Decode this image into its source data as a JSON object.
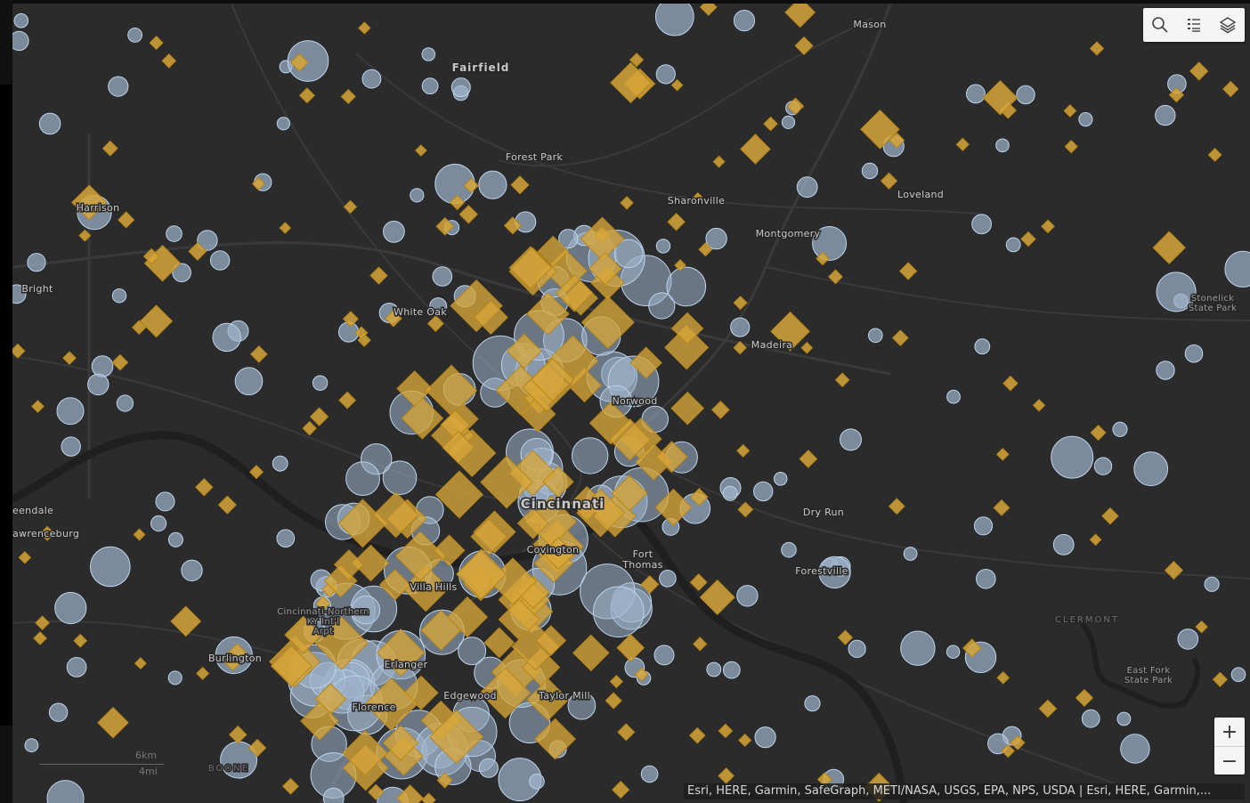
{
  "toolbar": {
    "search_icon": "search-icon",
    "legend_icon": "legend-list-icon",
    "layers_icon": "layers-icon"
  },
  "zoom": {
    "zoom_in_label": "+",
    "zoom_out_label": "−"
  },
  "attribution": "Esri, HERE, Garmin, SafeGraph, METI/NASA, USGS, EPA, NPS, USDA | Esri, HERE, Garmin,...",
  "scale": {
    "km_label": "6km",
    "mi_label": "4mi"
  },
  "colors": {
    "background": "#2b2b2b",
    "circle_fill": "#9fb5cc",
    "circle_stroke": "#bcd4ec",
    "diamond_fill": "#d7a63a",
    "diamond_stroke": "#b78618",
    "road": "#3a3a3a",
    "river": "#1f1f1f",
    "label": "#c8c8c8"
  },
  "places": [
    {
      "id": "mason",
      "name": "Mason",
      "type": "town"
    },
    {
      "id": "fairfield",
      "name": "Fairfield",
      "type": "city"
    },
    {
      "id": "forest-park",
      "name": "Forest Park",
      "type": "town"
    },
    {
      "id": "sharonville",
      "name": "Sharonville",
      "type": "town"
    },
    {
      "id": "loveland",
      "name": "Loveland",
      "type": "town"
    },
    {
      "id": "harrison",
      "name": "Harrison",
      "type": "town"
    },
    {
      "id": "montgomery",
      "name": "Montgomery",
      "type": "town"
    },
    {
      "id": "bright",
      "name": "Bright",
      "type": "town"
    },
    {
      "id": "white-oak",
      "name": "White Oak",
      "type": "town"
    },
    {
      "id": "stonelick",
      "name": "Stonelick State Park",
      "type": "park"
    },
    {
      "id": "madeira",
      "name": "Madeira",
      "type": "town"
    },
    {
      "id": "norwood",
      "name": "Norwood",
      "type": "town"
    },
    {
      "id": "greendale",
      "name": "eendale",
      "type": "town"
    },
    {
      "id": "lawrenceburg",
      "name": "awrenceburg",
      "type": "town"
    },
    {
      "id": "cincinnati",
      "name": "Cincinnati",
      "type": "city"
    },
    {
      "id": "dry-run",
      "name": "Dry Run",
      "type": "town"
    },
    {
      "id": "covington",
      "name": "Covington",
      "type": "town"
    },
    {
      "id": "fort-thomas",
      "name": "Fort Thomas",
      "type": "town"
    },
    {
      "id": "forestville",
      "name": "Forestville",
      "type": "town"
    },
    {
      "id": "villa-hills",
      "name": "Villa Hills",
      "type": "town"
    },
    {
      "id": "airport",
      "name": "Cincinnati-Northern KY Int'l Arpt",
      "type": "airport"
    },
    {
      "id": "clermont",
      "name": "CLERMONT",
      "type": "county"
    },
    {
      "id": "burlington",
      "name": "Burlington",
      "type": "town"
    },
    {
      "id": "erlanger",
      "name": "Erlanger",
      "type": "town"
    },
    {
      "id": "east-fork",
      "name": "East Fork State Park",
      "type": "park"
    },
    {
      "id": "edgewood",
      "name": "Edgewood",
      "type": "town"
    },
    {
      "id": "taylor-mill",
      "name": "Taylor Mill",
      "type": "town"
    },
    {
      "id": "florence",
      "name": "Florence",
      "type": "town"
    },
    {
      "id": "boone",
      "name": "BOONE",
      "type": "county"
    }
  ]
}
